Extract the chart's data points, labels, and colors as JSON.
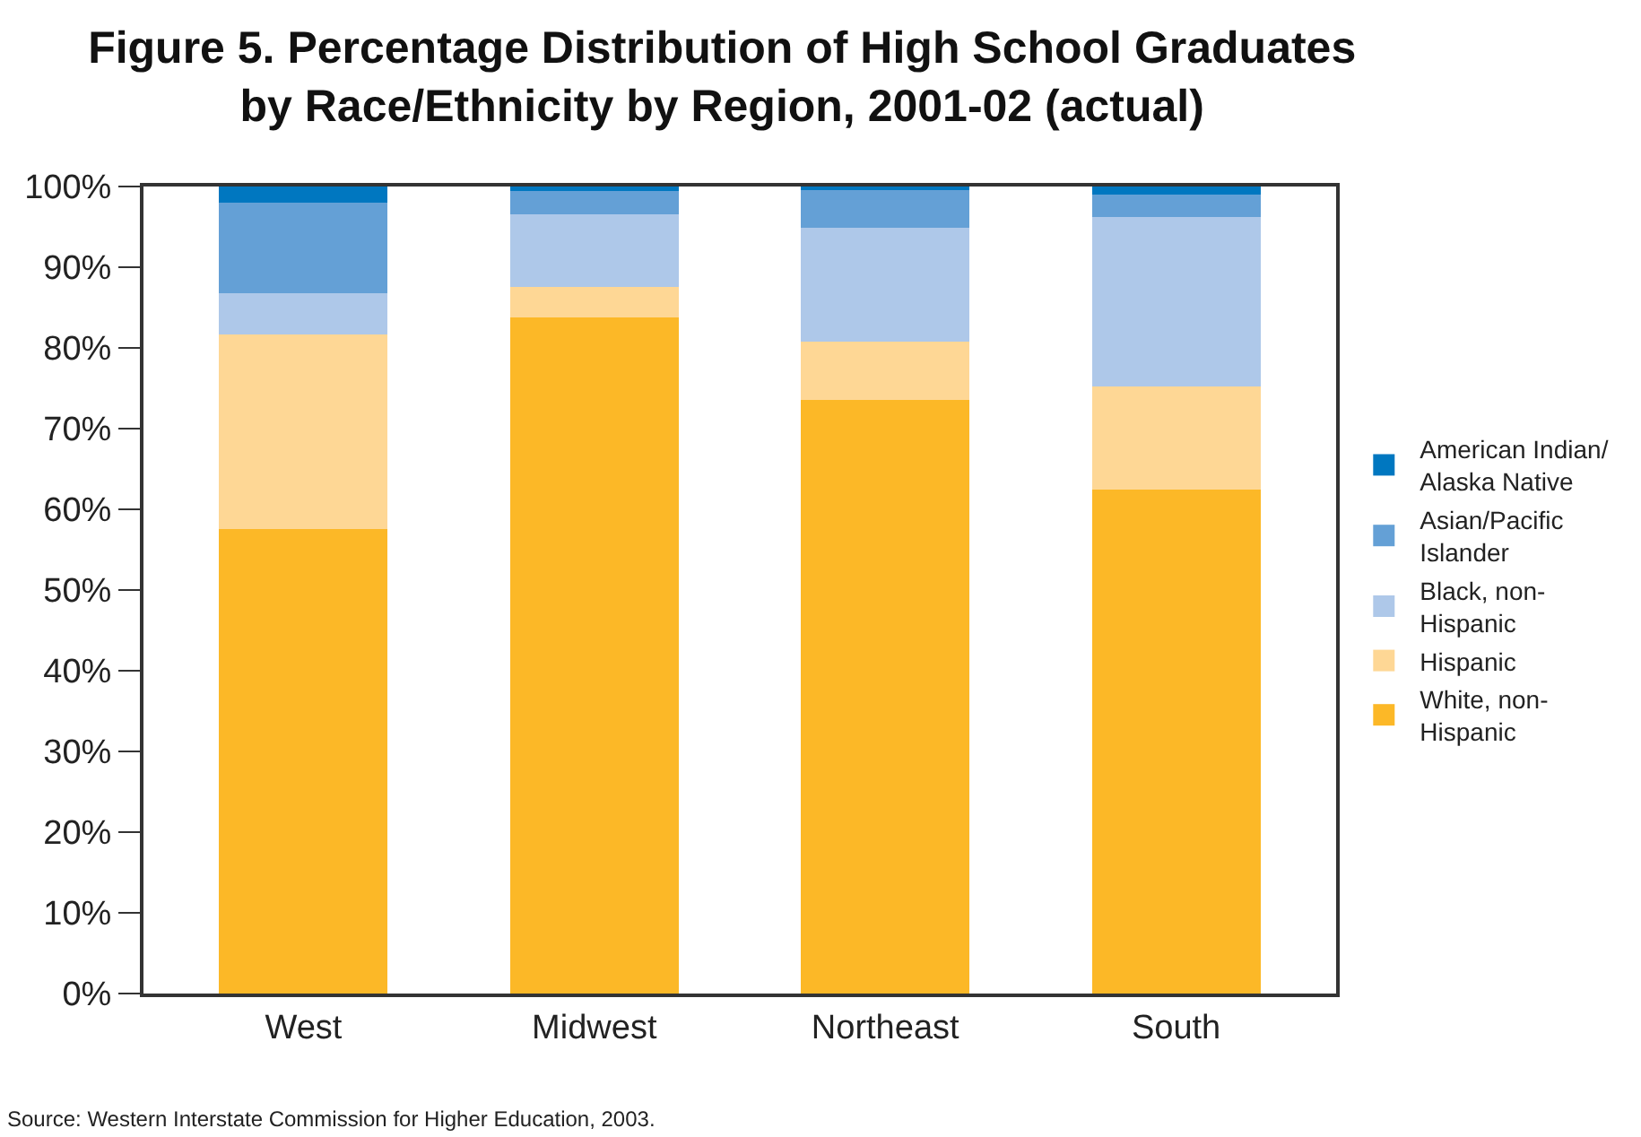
{
  "chart_data": {
    "type": "bar",
    "stacked": true,
    "title": "Figure 5. Percentage Distribution of High School Graduates\nby Race/Ethnicity by Region, 2001-02 (actual)",
    "categories": [
      "West",
      "Midwest",
      "Northeast",
      "South"
    ],
    "series": [
      {
        "name": "White, non-Hispanic",
        "color": "#fcb827",
        "values": [
          57.6,
          83.8,
          73.6,
          62.5
        ]
      },
      {
        "name": "Hispanic",
        "color": "#fed795",
        "values": [
          24.1,
          3.8,
          7.2,
          12.7
        ]
      },
      {
        "name": "Black, non-Hispanic",
        "color": "#aec8e9",
        "values": [
          5.1,
          9.0,
          14.1,
          21.0
        ]
      },
      {
        "name": "Asian/Pacific Islander",
        "color": "#64a0d6",
        "values": [
          11.2,
          2.8,
          4.8,
          2.8
        ]
      },
      {
        "name": "American Indian/ Alaska Native",
        "color": "#0077c0",
        "values": [
          2.0,
          0.6,
          0.3,
          1.0
        ]
      }
    ],
    "ylim": [
      0,
      100
    ],
    "yticks": [
      {
        "value": 0,
        "label": "0%"
      },
      {
        "value": 10,
        "label": "10%"
      },
      {
        "value": 20,
        "label": "20%"
      },
      {
        "value": 30,
        "label": "30%"
      },
      {
        "value": 40,
        "label": "40%"
      },
      {
        "value": 50,
        "label": "50%"
      },
      {
        "value": 60,
        "label": "60%"
      },
      {
        "value": 70,
        "label": "70%"
      },
      {
        "value": 80,
        "label": "80%"
      },
      {
        "value": 90,
        "label": "90%"
      },
      {
        "value": 100,
        "label": "100%"
      }
    ],
    "legend": "right",
    "annotations": [
      "Source: Western Interstate Commission for Higher Education, 2003."
    ]
  }
}
